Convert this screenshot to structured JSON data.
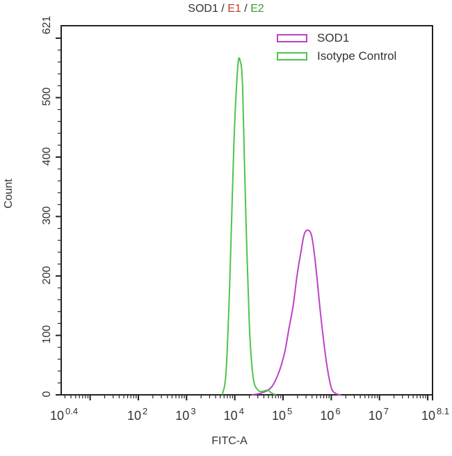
{
  "title": {
    "part1": "SOD1",
    "sep1": " / ",
    "part2": "E1",
    "sep2": " / ",
    "part3": "E2",
    "colors": {
      "part1": "#333333",
      "part2": "#c0392b",
      "part3": "#3a9a3a"
    }
  },
  "legend": {
    "items": [
      {
        "label": "SOD1",
        "color": "#c040c8"
      },
      {
        "label": "Isotype Control",
        "color": "#4cc44c"
      }
    ]
  },
  "axes": {
    "xlabel": "FITC-A",
    "ylabel": "Count",
    "yticks": [
      "0",
      "100",
      "200",
      "300",
      "400",
      "500",
      "621"
    ],
    "xticks": [
      {
        "base": "10",
        "exp": "0.4"
      },
      {
        "base": "10",
        "exp": "2"
      },
      {
        "base": "10",
        "exp": "3"
      },
      {
        "base": "10",
        "exp": "4"
      },
      {
        "base": "10",
        "exp": "5"
      },
      {
        "base": "10",
        "exp": "6"
      },
      {
        "base": "10",
        "exp": "7"
      },
      {
        "base": "10",
        "exp": "8.1"
      }
    ]
  },
  "chart_data": {
    "type": "line",
    "title": "SOD1 / E1 / E2",
    "xlabel": "FITC-A",
    "ylabel": "Count",
    "xscale": "log10",
    "xlim_log10": [
      0.4,
      8.1
    ],
    "ylim": [
      0,
      621
    ],
    "xtick_labels": [
      "10^0.4",
      "10^2",
      "10^3",
      "10^4",
      "10^5",
      "10^6",
      "10^7",
      "10^8.1"
    ],
    "ytick_labels": [
      "0",
      "100",
      "200",
      "300",
      "400",
      "500",
      "621"
    ],
    "legend_position": "upper right",
    "grid": false,
    "series": [
      {
        "name": "SOD1",
        "color": "#c040c8",
        "x_log10": [
          4.35,
          4.55,
          4.75,
          4.9,
          5.03,
          5.12,
          5.21,
          5.29,
          5.37,
          5.44,
          5.52,
          5.6,
          5.68,
          5.78,
          5.9,
          6.0,
          6.1,
          6.2
        ],
        "y": [
          0,
          3,
          12,
          35,
          70,
          110,
          150,
          200,
          240,
          270,
          277,
          265,
          215,
          135,
          55,
          12,
          2,
          0
        ]
      },
      {
        "name": "Isotype Control",
        "color": "#4cc44c",
        "x_log10": [
          3.74,
          3.82,
          3.9,
          3.98,
          4.06,
          4.11,
          4.16,
          4.22,
          4.3,
          4.38,
          4.48,
          4.58,
          4.68,
          4.76,
          4.85
        ],
        "y": [
          0,
          40,
          200,
          420,
          550,
          562,
          520,
          330,
          120,
          30,
          8,
          6,
          8,
          3,
          0
        ]
      }
    ],
    "peaks": [
      {
        "series": "Isotype Control",
        "x_log10": 4.11,
        "count": 562
      },
      {
        "series": "SOD1",
        "x_log10": 5.52,
        "count": 277
      }
    ]
  }
}
